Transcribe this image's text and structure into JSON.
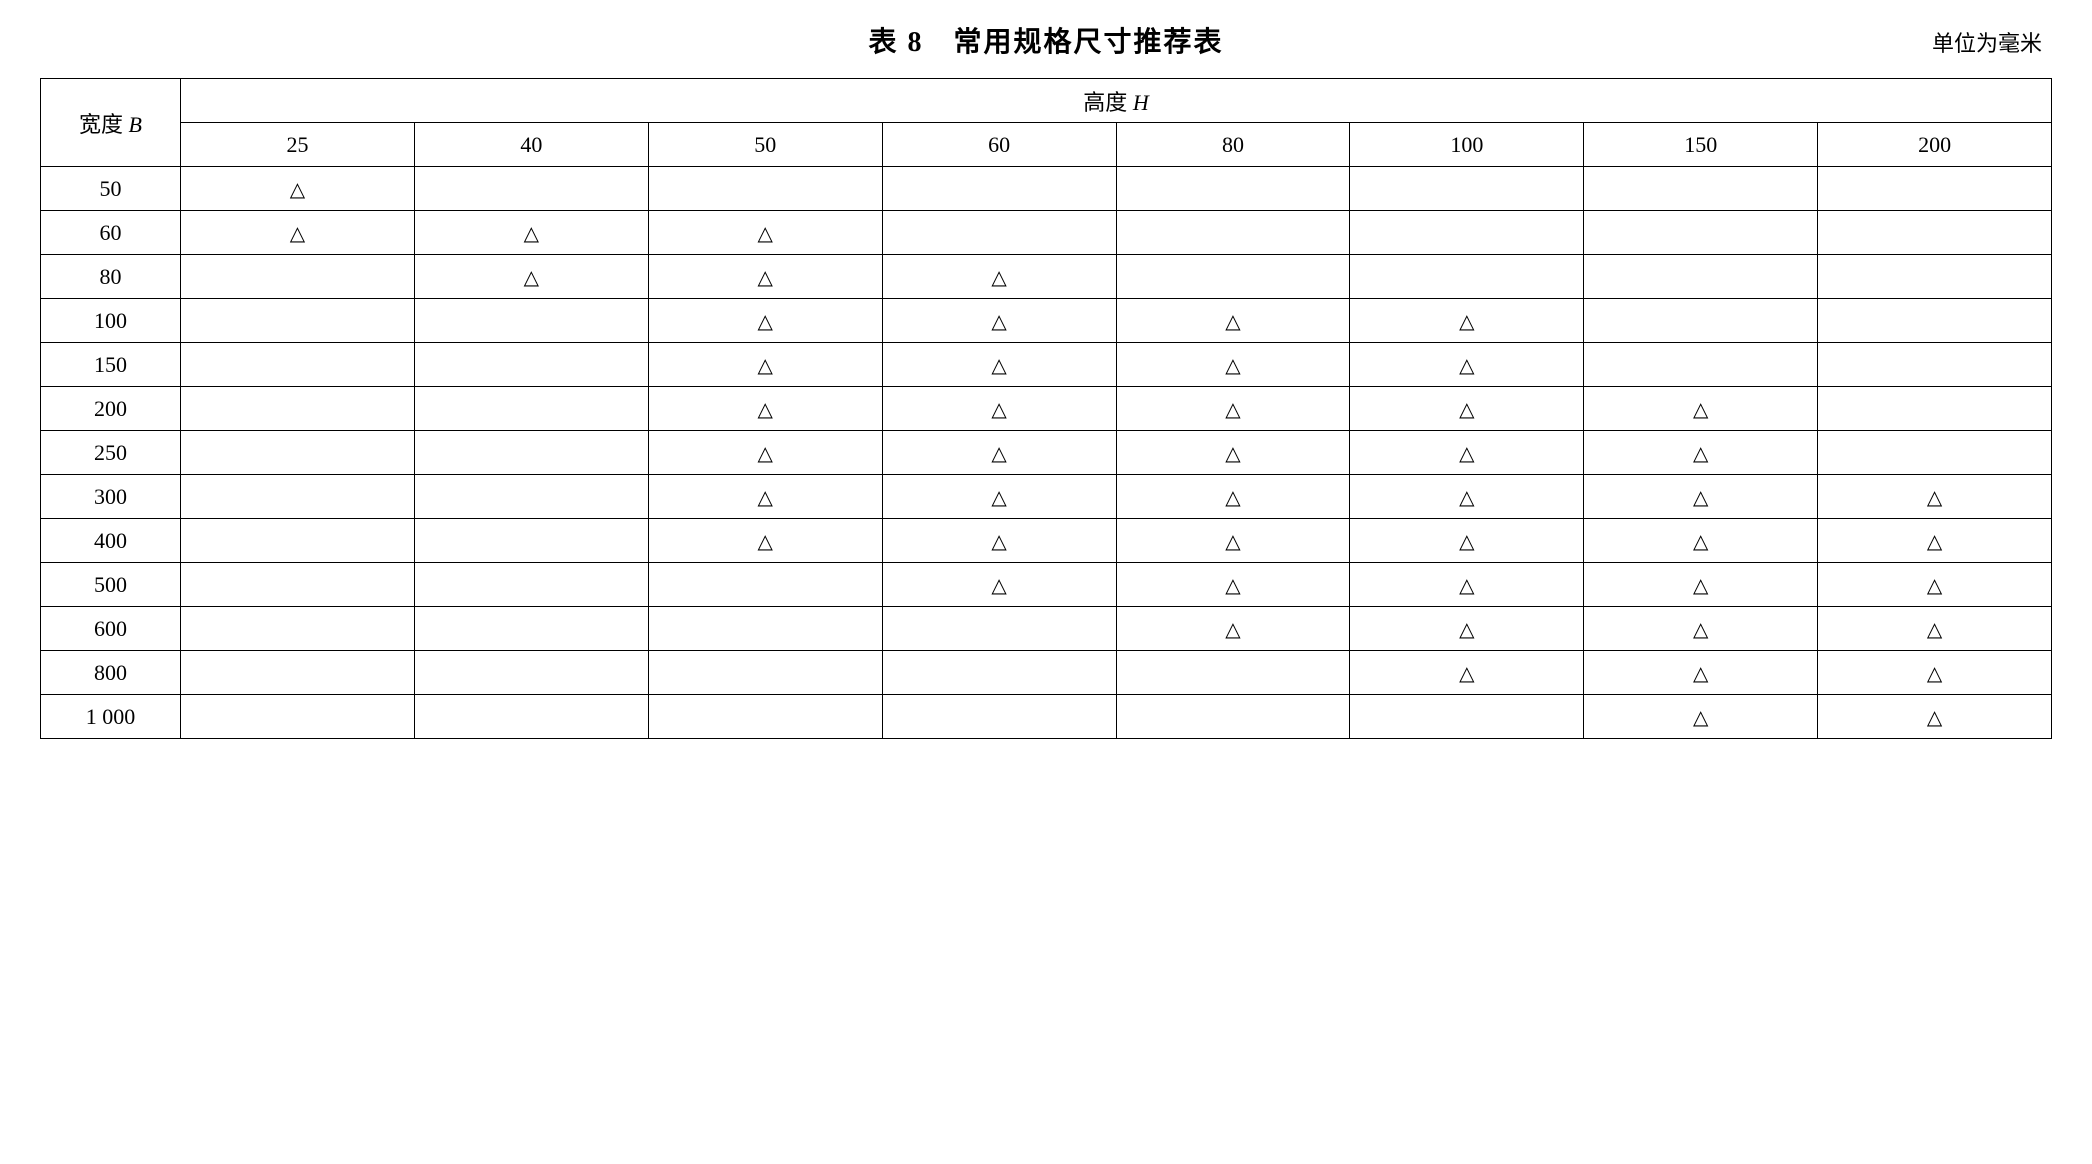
{
  "title": "表 8　常用规格尺寸推荐表",
  "unit_label": "单位为毫米",
  "table": {
    "type": "table",
    "background_color": "#ffffff",
    "border_color": "#000000",
    "text_color": "#000000",
    "font_size_pt": 16,
    "mark_symbol": "△",
    "row_header_label_prefix": "宽度 ",
    "row_header_label_var": "B",
    "col_header_label_prefix": "高度 ",
    "col_header_label_var": "H",
    "height_columns": [
      "25",
      "40",
      "50",
      "60",
      "80",
      "100",
      "150",
      "200"
    ],
    "width_rows": [
      "50",
      "60",
      "80",
      "100",
      "150",
      "200",
      "250",
      "300",
      "400",
      "500",
      "600",
      "800",
      "1 000"
    ],
    "marks": {
      "50": [
        1,
        0,
        0,
        0,
        0,
        0,
        0,
        0
      ],
      "60": [
        1,
        1,
        1,
        0,
        0,
        0,
        0,
        0
      ],
      "80": [
        0,
        1,
        1,
        1,
        0,
        0,
        0,
        0
      ],
      "100": [
        0,
        0,
        1,
        1,
        1,
        1,
        0,
        0
      ],
      "150": [
        0,
        0,
        1,
        1,
        1,
        1,
        0,
        0
      ],
      "200": [
        0,
        0,
        1,
        1,
        1,
        1,
        1,
        0
      ],
      "250": [
        0,
        0,
        1,
        1,
        1,
        1,
        1,
        0
      ],
      "300": [
        0,
        0,
        1,
        1,
        1,
        1,
        1,
        1
      ],
      "400": [
        0,
        0,
        1,
        1,
        1,
        1,
        1,
        1
      ],
      "500": [
        0,
        0,
        0,
        1,
        1,
        1,
        1,
        1
      ],
      "600": [
        0,
        0,
        0,
        0,
        1,
        1,
        1,
        1
      ],
      "800": [
        0,
        0,
        0,
        0,
        0,
        1,
        1,
        1
      ],
      "1 000": [
        0,
        0,
        0,
        0,
        0,
        0,
        1,
        1
      ]
    }
  }
}
